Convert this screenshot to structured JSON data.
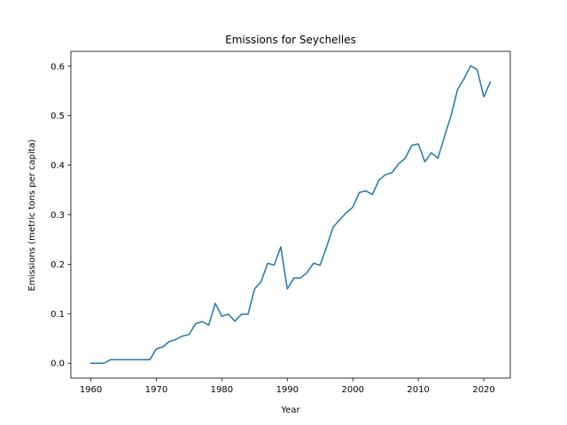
{
  "chart_data": {
    "type": "line",
    "title": "Emissions for Seychelles",
    "xlabel": "Year",
    "ylabel": "Emissions (metric tons per capita)",
    "xlim": [
      1956.95,
      2024.05
    ],
    "ylim": [
      -0.03,
      0.63
    ],
    "xticks": [
      1960,
      1970,
      1980,
      1990,
      2000,
      2010,
      2020
    ],
    "yticks": [
      0.0,
      0.1,
      0.2,
      0.3,
      0.4,
      0.5,
      0.6
    ],
    "ytick_labels": [
      "0.0",
      "0.1",
      "0.2",
      "0.3",
      "0.4",
      "0.5",
      "0.6"
    ],
    "grid": false,
    "line_color": "#1f77b4",
    "series": [
      {
        "x": [
          1960,
          1961,
          1962,
          1963,
          1964,
          1965,
          1966,
          1967,
          1968,
          1969,
          1970,
          1971,
          1972,
          1973,
          1974,
          1975,
          1976,
          1977,
          1978,
          1979,
          1980,
          1981,
          1982,
          1983,
          1984,
          1985,
          1986,
          1987,
          1988,
          1989,
          1990,
          1991,
          1992,
          1993,
          1994,
          1995,
          1996,
          1997,
          1998,
          1999,
          2000,
          2001,
          2002,
          2003,
          2004,
          2005,
          2006,
          2007,
          2008,
          2009,
          2010,
          2011,
          2012,
          2013,
          2014,
          2015,
          2016,
          2017,
          2018,
          2019,
          2020,
          2021
        ],
        "values": [
          0.0,
          0.0,
          0.0,
          0.007,
          0.007,
          0.007,
          0.007,
          0.007,
          0.007,
          0.007,
          0.029,
          0.033,
          0.044,
          0.048,
          0.055,
          0.058,
          0.08,
          0.084,
          0.077,
          0.121,
          0.095,
          0.099,
          0.085,
          0.099,
          0.099,
          0.15,
          0.165,
          0.202,
          0.198,
          0.235,
          0.15,
          0.172,
          0.172,
          0.183,
          0.202,
          0.198,
          0.235,
          0.275,
          0.29,
          0.304,
          0.315,
          0.345,
          0.348,
          0.341,
          0.37,
          0.381,
          0.385,
          0.403,
          0.414,
          0.44,
          0.443,
          0.407,
          0.425,
          0.414,
          0.458,
          0.5,
          0.553,
          0.575,
          0.601,
          0.593,
          0.538,
          0.568
        ]
      }
    ]
  }
}
